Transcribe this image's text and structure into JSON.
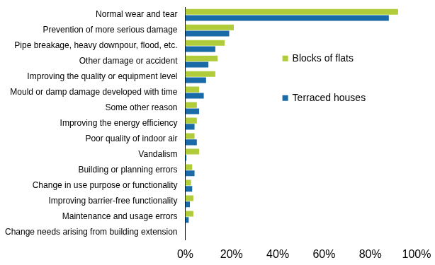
{
  "chart_data": {
    "type": "bar",
    "orientation": "horizontal",
    "categories": [
      "Normal wear and tear",
      "Prevention of more serious damage",
      "Pipe breakage, heavy downpour, flood, etc.",
      "Other damage or accident",
      "Improving the quality or equipment level",
      "Mould or damp damage developed with time",
      "Some other reason",
      "Improving the energy efficiency",
      "Poor quality of indoor air",
      "Vandalism",
      "Building or planning errors",
      "Change in use purpose or functionality",
      "Improving barrier-free functionality",
      "Maintenance and usage errors",
      "Change needs arising from building extension"
    ],
    "series": [
      {
        "name": "Blocks of flats",
        "color": "#b0cc3a",
        "values": [
          92,
          21,
          17,
          14,
          13,
          6,
          5,
          5,
          4,
          6,
          3,
          2.5,
          3.5,
          3.5,
          0
        ]
      },
      {
        "name": "Terraced houses",
        "color": "#1a6aa8",
        "values": [
          88,
          19,
          13,
          10,
          9,
          8,
          6,
          4,
          5,
          0.5,
          4,
          3,
          2,
          1.5,
          0
        ]
      }
    ],
    "xlim": [
      0,
      100
    ],
    "xticks": [
      {
        "value": 0,
        "label": "0%"
      },
      {
        "value": 20,
        "label": "20%"
      },
      {
        "value": 40,
        "label": "40%"
      },
      {
        "value": 60,
        "label": "60%"
      },
      {
        "value": 80,
        "label": "80%"
      },
      {
        "value": 100,
        "label": "100%"
      }
    ],
    "grid": false,
    "legend": "right"
  }
}
